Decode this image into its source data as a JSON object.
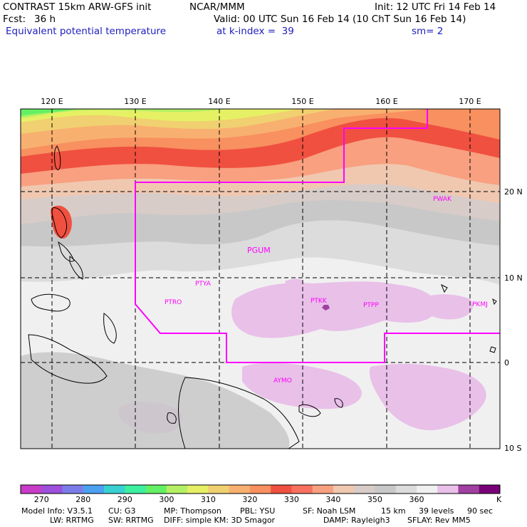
{
  "header": {
    "title": "CONTRAST 15km ARW-GFS init",
    "org": "NCAR/MMM",
    "init": "Init: 12 UTC Fri 14 Feb 14",
    "fcst_label": "Fcst:",
    "fcst_value": "36 h",
    "valid": "Valid: 00 UTC Sun 16 Feb 14 (10 ChT Sun 16 Feb 14)",
    "field": "Equivalent potential temperature",
    "level": "at k-index =  39",
    "smoothing": "sm= 2"
  },
  "map": {
    "lon_labels": [
      "120 E",
      "130 E",
      "140 E",
      "150 E",
      "160 E",
      "170 E"
    ],
    "lat_labels": [
      "20 N",
      "10 N",
      "0",
      "10 S"
    ],
    "stations": [
      {
        "name": "PWAK"
      },
      {
        "name": "PGUM"
      },
      {
        "name": "PTYA"
      },
      {
        "name": "PTRO"
      },
      {
        "name": "PTKK"
      },
      {
        "name": "PTPP"
      },
      {
        "name": "PKMJ"
      },
      {
        "name": "AYMO"
      }
    ]
  },
  "colorbar": {
    "colors": [
      "#c83cc8",
      "#9c50dc",
      "#7c7ce8",
      "#4ca0f0",
      "#38d0d0",
      "#3cf0a0",
      "#64f064",
      "#b4f064",
      "#e6f064",
      "#f0d070",
      "#f8b070",
      "#f89060",
      "#f05040",
      "#f87060",
      "#f8a080",
      "#f0c8b0",
      "#d8ccc8",
      "#c8c8c8",
      "#dcdcdc",
      "#f0f0f0",
      "#e8c0e8",
      "#a040a0",
      "#780078"
    ],
    "ticks": [
      "270",
      "280",
      "290",
      "300",
      "310",
      "320",
      "330",
      "340",
      "350",
      "360"
    ],
    "unit": "K"
  },
  "footer": {
    "line1": {
      "model": "Model Info: V3.5.1",
      "cu": "CU: G3",
      "mp": "MP: Thompson",
      "pbl": "PBL: YSU",
      "sf": "SF: Noah LSM",
      "res": "15 km",
      "levels": "39 levels",
      "dt": "90 sec"
    },
    "line2": {
      "lw": "LW: RRTMG",
      "sw": "SW: RRTMG",
      "diff": "DIFF: simple KM: 3D Smagor",
      "damp": "DAMP: Rayleigh3",
      "sflay": "SFLAY: Rev MM5"
    }
  }
}
